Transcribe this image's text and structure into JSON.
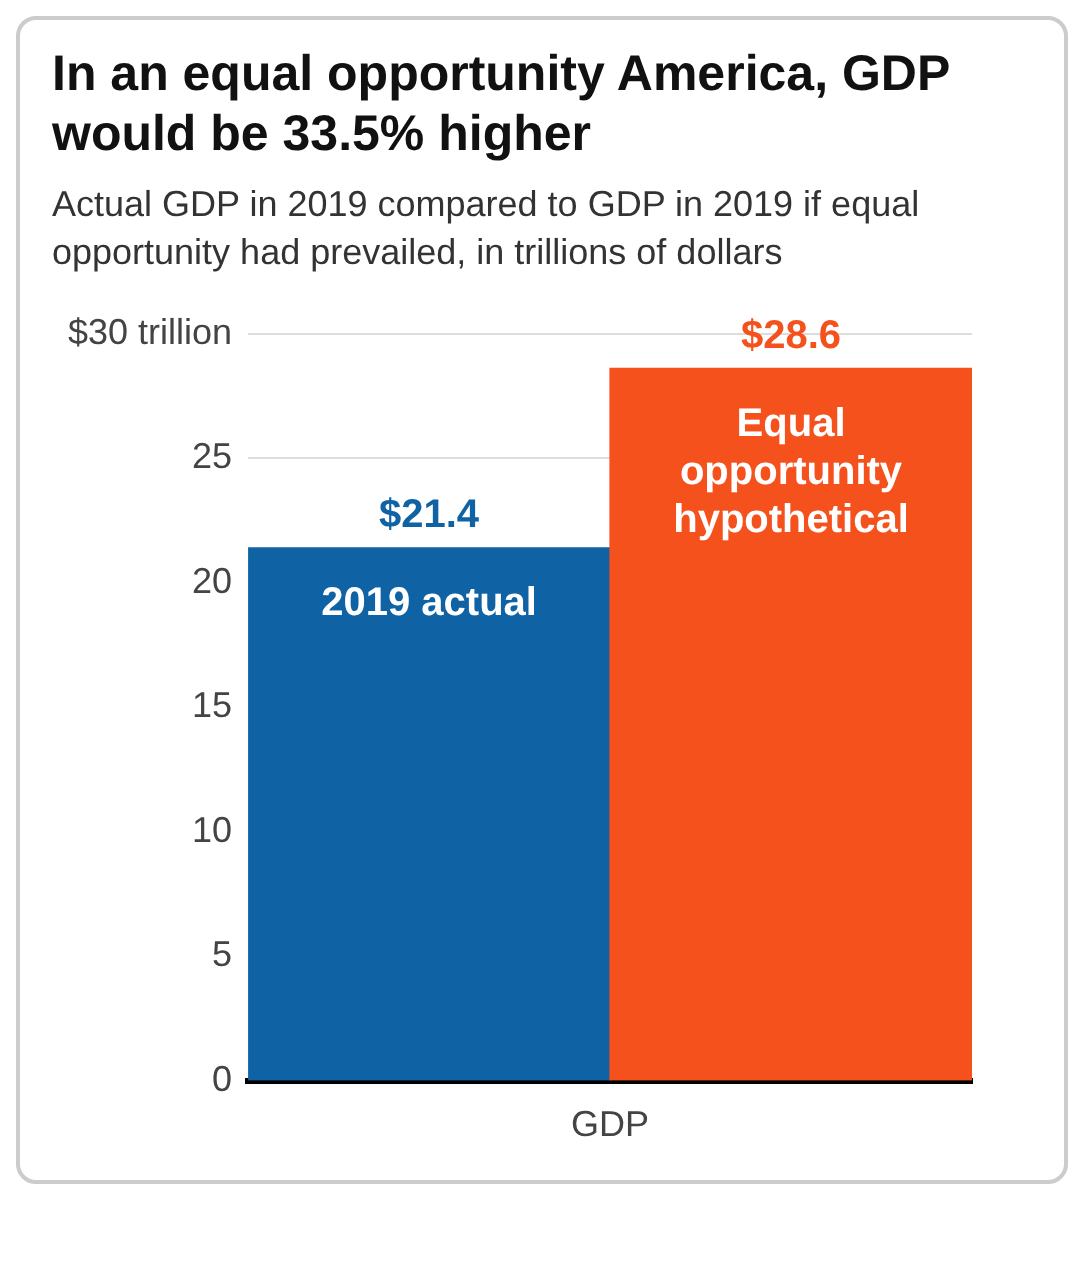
{
  "chart_data": {
    "type": "bar",
    "title": "In an equal opportunity America, GDP would be 33.5% higher",
    "subtitle": "Actual GDP in 2019 compared to GDP in 2019 if equal opportunity had prevailed, in trillions of dollars",
    "xlabel": "GDP",
    "categories": [
      "2019 actual",
      "Equal opportunity hypothetical"
    ],
    "values": [
      21.4,
      28.6
    ],
    "colors": [
      "#0f62a3",
      "#f5511d"
    ],
    "value_labels": [
      "$21.4",
      "$28.6"
    ],
    "ylim": [
      0,
      30
    ],
    "yticks": [
      0,
      5,
      10,
      15,
      20,
      25,
      {
        "value": 30,
        "label": "$30 trillion"
      }
    ],
    "grid": "y"
  }
}
